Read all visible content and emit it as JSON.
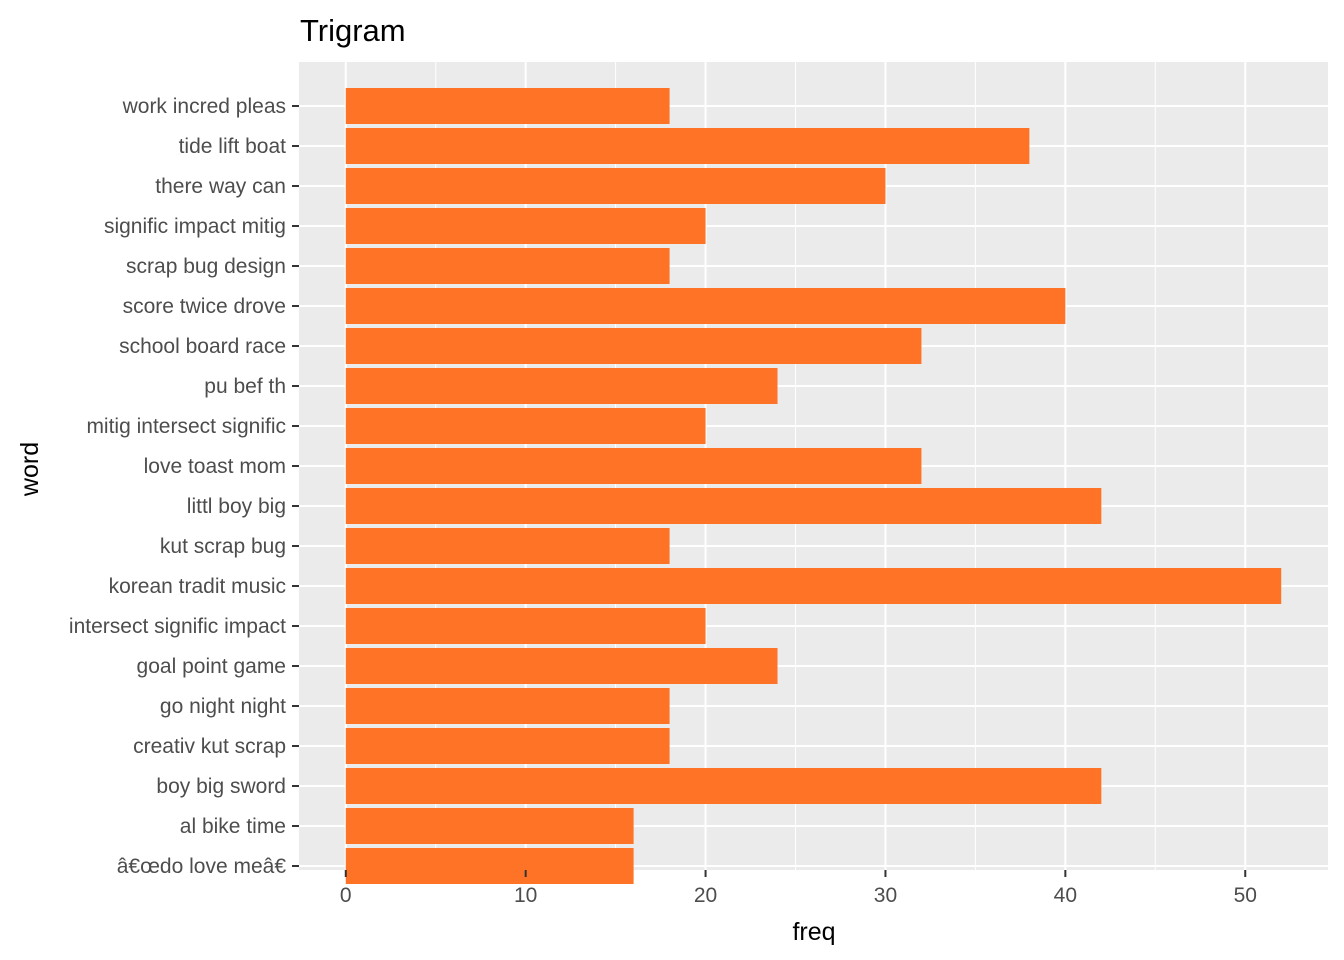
{
  "chart_data": {
    "type": "bar",
    "orientation": "horizontal",
    "title": "Trigram",
    "xlabel": "freq",
    "ylabel": "word",
    "categories": [
      "work incred pleas",
      "tide lift boat",
      "there way can",
      "signific impact mitig",
      "scrap bug design",
      "score twice drove",
      "school board race",
      "pu bef th",
      "mitig intersect signific",
      "love toast mom",
      "littl boy big",
      "kut scrap bug",
      "korean tradit music",
      "intersect signific impact",
      "goal point game",
      "go night night",
      "creativ kut scrap",
      "boy big sword",
      "al bike time",
      "â€œdo love meâ€"
    ],
    "values": [
      18,
      38,
      30,
      20,
      18,
      40,
      32,
      24,
      20,
      32,
      42,
      18,
      52,
      20,
      24,
      18,
      18,
      42,
      16,
      16
    ],
    "x_ticks": [
      0,
      10,
      20,
      30,
      40,
      50
    ],
    "xlim": [
      -2.6,
      54.6
    ],
    "grid": true,
    "legend": "none",
    "colors": {
      "bar": "#ff7326",
      "panel_background": "#ebebeb",
      "gridline": "#ffffff",
      "tick_label": "#4d4d4d",
      "tick_mark": "#333333"
    }
  }
}
